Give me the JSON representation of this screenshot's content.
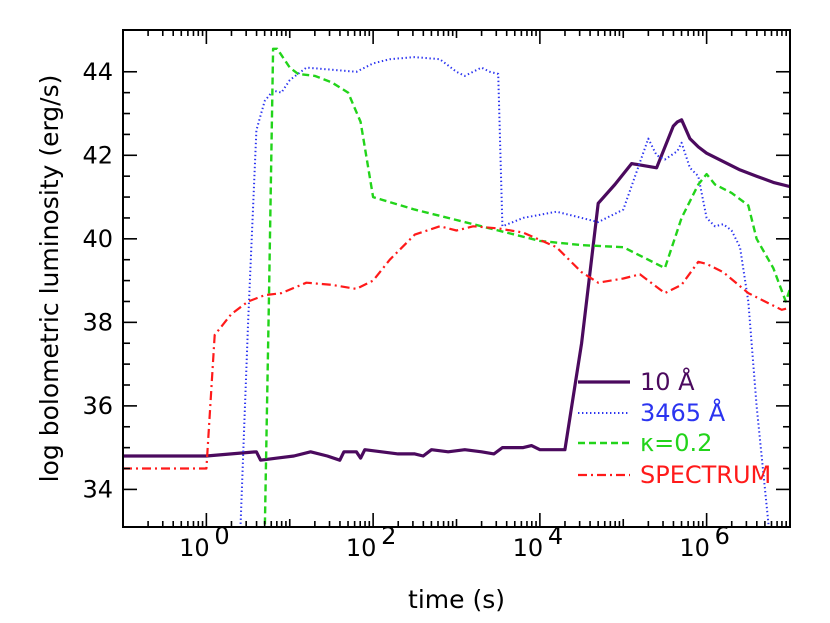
{
  "chart_data": {
    "type": "line",
    "title": "",
    "xlabel": "time (s)",
    "ylabel": "log bolometric luminosity (erg/s)",
    "xscale": "log",
    "xlim_log10": [
      -1,
      7
    ],
    "ylim": [
      33.1,
      45.0
    ],
    "x_ticks": [
      {
        "label": "10",
        "exp": "0",
        "value_log10": 0
      },
      {
        "label": "10",
        "exp": "2",
        "value_log10": 2
      },
      {
        "label": "10",
        "exp": "4",
        "value_log10": 4
      },
      {
        "label": "10",
        "exp": "6",
        "value_log10": 6
      }
    ],
    "y_ticks": [
      "34",
      "36",
      "38",
      "40",
      "42",
      "44"
    ],
    "legend_position": "bottom-right",
    "series": [
      {
        "name": "10 Å",
        "color": "#4b0a5e",
        "style": "solid",
        "points": [
          [
            -1,
            34.8
          ],
          [
            0,
            34.8
          ],
          [
            0.3,
            34.85
          ],
          [
            0.6,
            34.9
          ],
          [
            0.65,
            34.7
          ],
          [
            0.85,
            34.75
          ],
          [
            1.05,
            34.8
          ],
          [
            1.25,
            34.9
          ],
          [
            1.45,
            34.8
          ],
          [
            1.6,
            34.7
          ],
          [
            1.65,
            34.9
          ],
          [
            1.8,
            34.9
          ],
          [
            1.85,
            34.75
          ],
          [
            1.9,
            34.95
          ],
          [
            2.1,
            34.9
          ],
          [
            2.3,
            34.85
          ],
          [
            2.5,
            34.85
          ],
          [
            2.6,
            34.8
          ],
          [
            2.7,
            34.95
          ],
          [
            2.9,
            34.9
          ],
          [
            3.1,
            34.95
          ],
          [
            3.3,
            34.9
          ],
          [
            3.45,
            34.85
          ],
          [
            3.55,
            35.0
          ],
          [
            3.8,
            35.0
          ],
          [
            3.9,
            35.05
          ],
          [
            4.0,
            34.95
          ],
          [
            4.3,
            34.95
          ],
          [
            4.5,
            37.5
          ],
          [
            4.7,
            40.85
          ],
          [
            4.9,
            41.3
          ],
          [
            5.1,
            41.8
          ],
          [
            5.4,
            41.7
          ],
          [
            5.6,
            42.7
          ],
          [
            5.65,
            42.8
          ],
          [
            5.7,
            42.85
          ],
          [
            5.8,
            42.4
          ],
          [
            5.9,
            42.2
          ],
          [
            6.0,
            42.05
          ],
          [
            6.2,
            41.85
          ],
          [
            6.4,
            41.65
          ],
          [
            6.6,
            41.5
          ],
          [
            6.8,
            41.35
          ],
          [
            7.0,
            41.25
          ]
        ]
      },
      {
        "name": "3465 Å",
        "color": "#2b34f0",
        "style": "dotted",
        "points": [
          [
            0.4,
            32.6
          ],
          [
            0.5,
            38.0
          ],
          [
            0.6,
            42.6
          ],
          [
            0.7,
            43.3
          ],
          [
            0.8,
            43.55
          ],
          [
            0.9,
            43.5
          ],
          [
            1.0,
            43.8
          ],
          [
            1.2,
            44.1
          ],
          [
            1.5,
            44.05
          ],
          [
            1.8,
            44.0
          ],
          [
            2.0,
            44.2
          ],
          [
            2.2,
            44.3
          ],
          [
            2.5,
            44.35
          ],
          [
            2.8,
            44.3
          ],
          [
            3.0,
            44.0
          ],
          [
            3.1,
            43.9
          ],
          [
            3.3,
            44.1
          ],
          [
            3.4,
            44.0
          ],
          [
            3.5,
            43.95
          ],
          [
            3.55,
            40.3
          ],
          [
            3.8,
            40.5
          ],
          [
            4.2,
            40.65
          ],
          [
            4.5,
            40.5
          ],
          [
            4.7,
            40.4
          ],
          [
            5.0,
            40.7
          ],
          [
            5.3,
            42.4
          ],
          [
            5.4,
            42.0
          ],
          [
            5.5,
            41.9
          ],
          [
            5.65,
            42.1
          ],
          [
            5.7,
            42.3
          ],
          [
            5.8,
            41.7
          ],
          [
            5.9,
            41.5
          ],
          [
            6.0,
            40.5
          ],
          [
            6.1,
            40.3
          ],
          [
            6.2,
            40.35
          ],
          [
            6.3,
            40.2
          ],
          [
            6.4,
            39.8
          ],
          [
            6.5,
            38.5
          ],
          [
            6.6,
            36.0
          ],
          [
            6.75,
            33.0
          ],
          [
            6.8,
            32.6
          ]
        ]
      },
      {
        "name": "κ=0.2",
        "color": "#22d41a",
        "style": "dashed",
        "points": [
          [
            0.7,
            32.9
          ],
          [
            0.75,
            38.5
          ],
          [
            0.8,
            44.55
          ],
          [
            0.85,
            44.55
          ],
          [
            0.9,
            44.4
          ],
          [
            1.0,
            44.1
          ],
          [
            1.1,
            43.95
          ],
          [
            1.3,
            43.9
          ],
          [
            1.5,
            43.75
          ],
          [
            1.7,
            43.5
          ],
          [
            1.85,
            42.8
          ],
          [
            2.0,
            41.0
          ],
          [
            2.5,
            40.7
          ],
          [
            3.0,
            40.45
          ],
          [
            3.5,
            40.2
          ],
          [
            4.0,
            39.95
          ],
          [
            4.5,
            39.85
          ],
          [
            5.0,
            39.8
          ],
          [
            5.5,
            39.3
          ],
          [
            5.7,
            40.5
          ],
          [
            5.9,
            41.3
          ],
          [
            6.0,
            41.55
          ],
          [
            6.1,
            41.3
          ],
          [
            6.3,
            41.1
          ],
          [
            6.5,
            40.8
          ],
          [
            6.6,
            40.0
          ],
          [
            6.8,
            39.3
          ],
          [
            6.95,
            38.5
          ],
          [
            7.0,
            38.8
          ]
        ]
      },
      {
        "name": "SPECTRUM",
        "color": "#ff1a1a",
        "style": "dashdot",
        "points": [
          [
            -1,
            34.5
          ],
          [
            -0.5,
            34.5
          ],
          [
            0,
            34.5
          ],
          [
            0.1,
            37.7
          ],
          [
            0.3,
            38.2
          ],
          [
            0.5,
            38.5
          ],
          [
            0.7,
            38.65
          ],
          [
            0.9,
            38.7
          ],
          [
            1.2,
            38.95
          ],
          [
            1.5,
            38.9
          ],
          [
            1.8,
            38.8
          ],
          [
            2.0,
            39.0
          ],
          [
            2.2,
            39.5
          ],
          [
            2.5,
            40.1
          ],
          [
            2.8,
            40.3
          ],
          [
            3.0,
            40.2
          ],
          [
            3.2,
            40.3
          ],
          [
            3.5,
            40.25
          ],
          [
            3.8,
            40.15
          ],
          [
            4.2,
            39.8
          ],
          [
            4.5,
            39.2
          ],
          [
            4.7,
            38.95
          ],
          [
            5.0,
            39.05
          ],
          [
            5.2,
            39.15
          ],
          [
            5.5,
            38.7
          ],
          [
            5.7,
            38.9
          ],
          [
            5.9,
            39.45
          ],
          [
            6.0,
            39.4
          ],
          [
            6.2,
            39.2
          ],
          [
            6.5,
            38.7
          ],
          [
            6.7,
            38.5
          ],
          [
            6.9,
            38.3
          ],
          [
            7.0,
            38.35
          ]
        ]
      }
    ]
  }
}
